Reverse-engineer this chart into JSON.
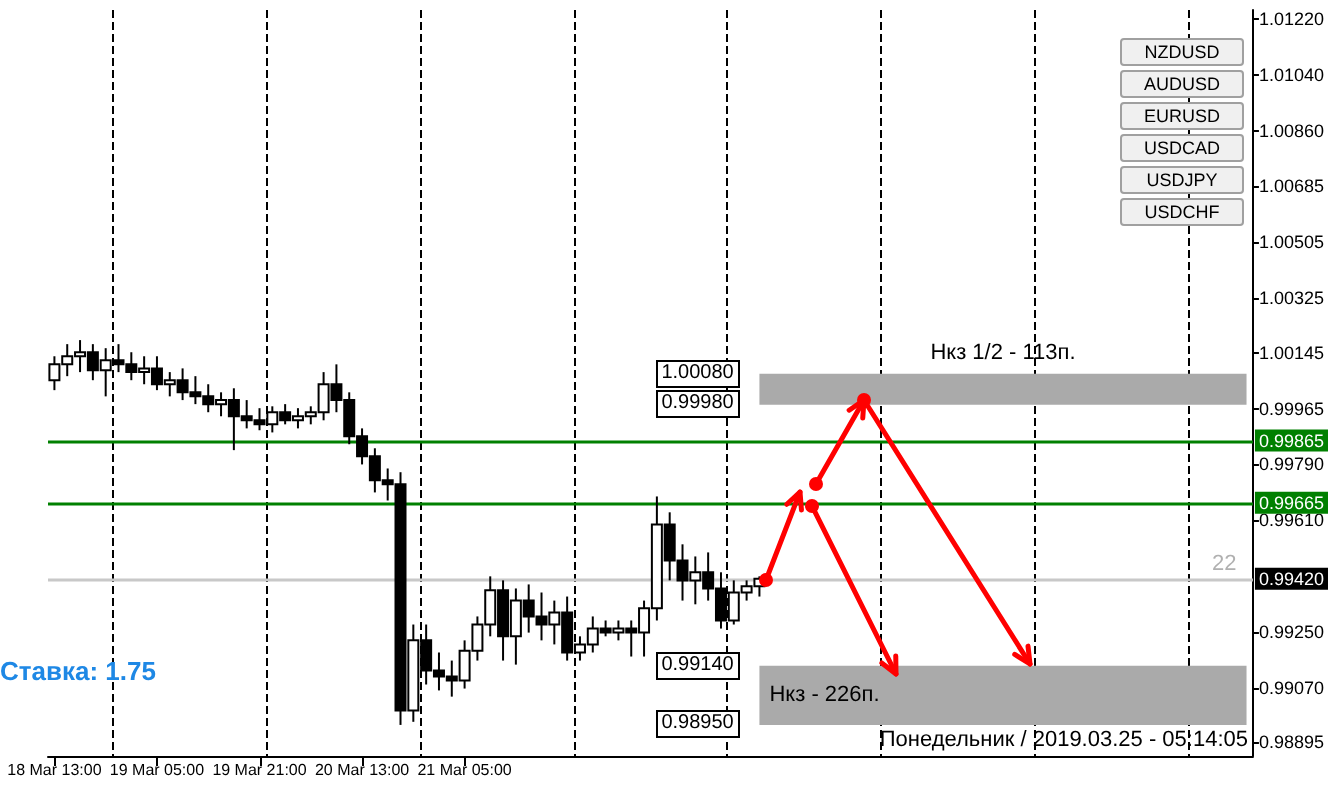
{
  "chart_data": {
    "type": "candlestick",
    "color": "#000000",
    "grid": "x",
    "categories": [
      "18 Mar 13:00",
      null,
      null,
      null,
      null,
      null,
      null,
      null,
      "19 Mar 05:00",
      null,
      null,
      null,
      null,
      null,
      null,
      null,
      "19 Mar 21:00",
      null,
      null,
      null,
      null,
      null,
      null,
      null,
      "20 Mar 13:00",
      null,
      null,
      null,
      null,
      null,
      null,
      null,
      "21 Mar 05:00",
      null,
      null,
      null,
      null,
      null,
      null,
      null,
      null,
      null,
      null,
      null,
      null,
      null,
      null,
      null,
      null,
      null,
      null,
      null,
      null,
      null,
      null,
      null,
      null,
      null,
      null,
      null,
      null,
      null,
      null,
      null,
      null,
      null,
      null,
      null,
      null,
      null,
      null,
      null,
      null,
      null,
      null,
      null,
      null,
      null,
      null,
      null,
      null,
      null,
      null,
      null,
      null,
      null,
      null,
      null,
      null,
      null,
      null,
      null,
      null,
      null
    ],
    "ohlc": [
      [
        1.00059,
        1.00136,
        1.00027,
        1.0011
      ],
      [
        1.0011,
        1.00175,
        1.00072,
        1.00136
      ],
      [
        1.00136,
        1.00188,
        1.00085,
        1.00149
      ],
      [
        1.00149,
        1.00175,
        1.00059,
        1.00091
      ],
      [
        1.00091,
        1.00162,
        1.00007,
        1.00123
      ],
      [
        1.00123,
        1.00175,
        1.00085,
        1.0011
      ],
      [
        1.0011,
        1.00149,
        1.00059,
        1.00085
      ],
      [
        1.00085,
        1.00136,
        1.00046,
        1.00097
      ],
      [
        1.00097,
        1.00136,
        1.00027,
        1.00046
      ],
      [
        1.00046,
        1.00085,
        1.00007,
        1.00059
      ],
      [
        1.00059,
        1.00097,
        0.99995,
        1.0002
      ],
      [
        1.0002,
        1.00072,
        0.99982,
        1.00007
      ],
      [
        1.00007,
        1.00046,
        0.99956,
        0.99982
      ],
      [
        0.99982,
        1.0002,
        0.99943,
        0.99995
      ],
      [
        0.99995,
        1.00033,
        0.99834,
        0.99943
      ],
      [
        0.99943,
        0.99995,
        0.99904,
        0.9993
      ],
      [
        0.9993,
        0.99969,
        0.99898,
        0.99917
      ],
      [
        0.99917,
        0.99975,
        0.99891,
        0.99956
      ],
      [
        0.99956,
        0.99982,
        0.99917,
        0.9993
      ],
      [
        0.9993,
        0.99969,
        0.99904,
        0.99943
      ],
      [
        0.99943,
        0.99975,
        0.99917,
        0.99956
      ],
      [
        0.99956,
        1.00085,
        0.9993,
        1.00046
      ],
      [
        1.00046,
        1.0011,
        0.99956,
        0.99995
      ],
      [
        0.99995,
        1.0002,
        0.99853,
        0.99879
      ],
      [
        0.99879,
        0.99904,
        0.99788,
        0.99814
      ],
      [
        0.99814,
        0.9984,
        0.99698,
        0.99737
      ],
      [
        0.99737,
        0.99775,
        0.99672,
        0.99724
      ],
      [
        0.99724,
        0.99763,
        0.9895,
        0.98996
      ],
      [
        0.98996,
        0.99273,
        0.9896,
        0.99222
      ],
      [
        0.99222,
        0.99273,
        0.9908,
        0.99125
      ],
      [
        0.99125,
        0.99183,
        0.99061,
        0.99106
      ],
      [
        0.99106,
        0.99157,
        0.99041,
        0.99093
      ],
      [
        0.99093,
        0.99222,
        0.99067,
        0.99189
      ],
      [
        0.99189,
        0.99299,
        0.99157,
        0.99273
      ],
      [
        0.99273,
        0.99428,
        0.99235,
        0.99383
      ],
      [
        0.99383,
        0.99415,
        0.99157,
        0.99235
      ],
      [
        0.99235,
        0.99389,
        0.99144,
        0.9935
      ],
      [
        0.9935,
        0.99402,
        0.99247,
        0.99299
      ],
      [
        0.99299,
        0.99376,
        0.99222,
        0.99273
      ],
      [
        0.99273,
        0.9935,
        0.99209,
        0.99312
      ],
      [
        0.99312,
        0.99363,
        0.99157,
        0.99183
      ],
      [
        0.99183,
        0.99235,
        0.99157,
        0.99209
      ],
      [
        0.99209,
        0.99299,
        0.99183,
        0.9926
      ],
      [
        0.9926,
        0.99286,
        0.99235,
        0.99247
      ],
      [
        0.99247,
        0.99286,
        0.99222,
        0.9926
      ],
      [
        0.9926,
        0.99286,
        0.9917,
        0.99247
      ],
      [
        0.99247,
        0.9935,
        0.9917,
        0.99325
      ],
      [
        0.99325,
        0.99685,
        0.99286,
        0.99595
      ],
      [
        0.99595,
        0.99634,
        0.99415,
        0.99479
      ],
      [
        0.99479,
        0.99531,
        0.9935,
        0.99415
      ],
      [
        0.99415,
        0.99492,
        0.99338,
        0.99441
      ],
      [
        0.99441,
        0.99505,
        0.9935,
        0.99389
      ],
      [
        0.99389,
        0.99441,
        0.9926,
        0.99286
      ],
      [
        0.99286,
        0.99415,
        0.99273,
        0.99376
      ],
      [
        0.99376,
        0.99415,
        0.9935,
        0.99396
      ],
      [
        0.99396,
        0.99428,
        0.99363,
        0.9942
      ],
      null,
      null,
      null,
      null,
      null,
      null,
      null,
      null,
      null,
      null,
      null,
      null,
      null,
      null,
      null,
      null,
      null,
      null,
      null,
      null,
      null,
      null,
      null,
      null,
      null,
      null,
      null,
      null,
      null,
      null,
      null,
      null,
      null,
      null,
      null,
      null,
      null,
      null
    ],
    "ylim": [
      0.9885,
      1.0125
    ],
    "yticks": [
      {
        "value": 1.0122,
        "label": "1.01220"
      },
      {
        "value": 1.0104,
        "label": "1.01040"
      },
      {
        "value": 1.0086,
        "label": "1.00860"
      },
      {
        "value": 1.00685,
        "label": "1.00685"
      },
      {
        "value": 1.00505,
        "label": "1.00505"
      },
      {
        "value": 1.00325,
        "label": "1.00325"
      },
      {
        "value": 1.00145,
        "label": "1.00145"
      },
      {
        "value": 0.99965,
        "label": "0.99965"
      },
      {
        "value": 0.9979,
        "label": "0.99790"
      },
      {
        "value": 0.9961,
        "label": "0.99610"
      },
      {
        "value": 0.9925,
        "label": "0.99250"
      },
      {
        "value": 0.9907,
        "label": "0.99070"
      },
      {
        "value": 0.98895,
        "label": "0.98895"
      }
    ],
    "ref_lines": [
      {
        "axis": "y",
        "value": 0.99865,
        "label": "0.99865",
        "color": "#008000"
      },
      {
        "axis": "y",
        "value": 0.99665,
        "label": "0.99665",
        "color": "#008000"
      },
      {
        "axis": "y",
        "value": 0.9942,
        "label": "0.99420",
        "color": "#c8c8c8"
      }
    ],
    "bands": [
      {
        "axis": "y",
        "from": 0.9998,
        "to": 1.0008,
        "label": "Нкз 1/2 - 113п.",
        "color": "#aaaaaa"
      },
      {
        "axis": "y",
        "from": 0.9895,
        "to": 0.9914,
        "label": "Нкз - 226п.",
        "color": "#aaaaaa"
      }
    ],
    "annotations": [
      "Ставка: 1.75",
      "Понедельник / 2019.03.25 - 05:14:05",
      "22",
      "NZDUSD",
      "AUDUSD",
      "EURUSD",
      "USDCAD",
      "USDJPY",
      "USDCHF",
      "1.00080",
      "0.99980",
      "0.99140",
      "0.98950"
    ]
  }
}
